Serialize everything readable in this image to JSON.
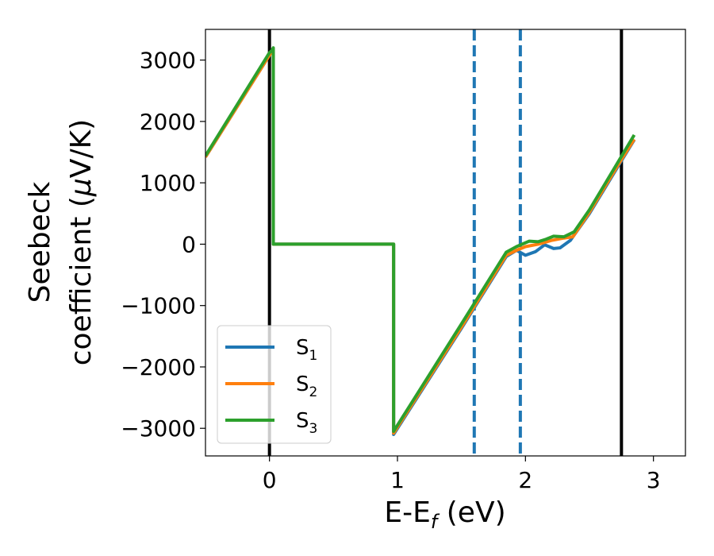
{
  "chart_data": {
    "type": "line",
    "title": "",
    "xlabel_main": "E-E",
    "xlabel_sub": "f",
    "xlabel_unit": " (eV)",
    "ylabel_line1": "Seebeck",
    "ylabel_line2": "coefficient  (",
    "ylabel_mu": "μ",
    "ylabel_unit": "V/K)",
    "xlim": [
      -0.5,
      3.25
    ],
    "ylim": [
      -3450,
      3500
    ],
    "grid": false,
    "legend_position": "lower-left",
    "x_ticks": [
      0,
      1,
      2,
      3
    ],
    "x_tick_labels": [
      "0",
      "1",
      "2",
      "3"
    ],
    "y_ticks": [
      3000,
      2000,
      1000,
      0,
      -1000,
      -2000,
      -3000
    ],
    "y_tick_labels": [
      "3000",
      "2000",
      "1000",
      "0",
      "−1000",
      "−2000",
      "−3000"
    ],
    "vlines": [
      {
        "x": 0.0,
        "style": "solid",
        "color": "#000000"
      },
      {
        "x": 2.75,
        "style": "solid",
        "color": "#000000"
      },
      {
        "x": 1.6,
        "style": "dashed",
        "color": "#1f77b4"
      },
      {
        "x": 1.96,
        "style": "dashed",
        "color": "#1f77b4"
      }
    ],
    "series": [
      {
        "name": "S",
        "sub": "1",
        "color": "#1f77b4",
        "points": [
          [
            -0.5,
            1420
          ],
          [
            0.0,
            3080
          ],
          [
            0.02,
            3140
          ],
          [
            0.03,
            3180
          ],
          [
            0.03,
            0
          ],
          [
            0.97,
            0
          ],
          [
            0.97,
            -3100
          ],
          [
            1.5,
            -1370
          ],
          [
            1.85,
            -200
          ],
          [
            1.93,
            -100
          ],
          [
            2.0,
            -180
          ],
          [
            2.08,
            -120
          ],
          [
            2.15,
            -10
          ],
          [
            2.22,
            -70
          ],
          [
            2.27,
            -60
          ],
          [
            2.35,
            60
          ],
          [
            2.5,
            500
          ],
          [
            2.75,
            1360
          ],
          [
            2.85,
            1700
          ]
        ]
      },
      {
        "name": "S",
        "sub": "2",
        "color": "#ff7f0e",
        "points": [
          [
            -0.5,
            1420
          ],
          [
            0.0,
            3080
          ],
          [
            0.02,
            3140
          ],
          [
            0.03,
            3180
          ],
          [
            0.03,
            0
          ],
          [
            0.97,
            0
          ],
          [
            0.97,
            -3080
          ],
          [
            1.5,
            -1350
          ],
          [
            1.85,
            -180
          ],
          [
            1.93,
            -100
          ],
          [
            2.0,
            -40
          ],
          [
            2.1,
            0
          ],
          [
            2.2,
            60
          ],
          [
            2.3,
            100
          ],
          [
            2.37,
            120
          ],
          [
            2.5,
            520
          ],
          [
            2.75,
            1380
          ],
          [
            2.85,
            1710
          ]
        ]
      },
      {
        "name": "S",
        "sub": "3",
        "color": "#2ca02c",
        "points": [
          [
            -0.5,
            1440
          ],
          [
            0.0,
            3120
          ],
          [
            0.02,
            3160
          ],
          [
            0.03,
            3200
          ],
          [
            0.03,
            0
          ],
          [
            0.97,
            0
          ],
          [
            0.97,
            -3050
          ],
          [
            1.5,
            -1300
          ],
          [
            1.85,
            -130
          ],
          [
            1.93,
            -40
          ],
          [
            2.03,
            50
          ],
          [
            2.1,
            40
          ],
          [
            2.16,
            80
          ],
          [
            2.22,
            130
          ],
          [
            2.3,
            120
          ],
          [
            2.38,
            200
          ],
          [
            2.5,
            560
          ],
          [
            2.75,
            1430
          ],
          [
            2.85,
            1780
          ]
        ]
      }
    ]
  }
}
